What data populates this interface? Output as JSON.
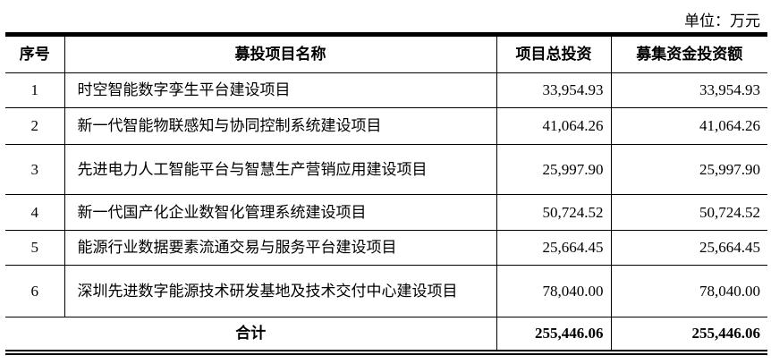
{
  "unit": "单位：万元",
  "headers": [
    "序号",
    "募投项目名称",
    "项目总投资",
    "募集资金投资额"
  ],
  "rows": [
    {
      "no": "1",
      "name": "时空智能数字孪生平台建设项目",
      "total": "33,954.93",
      "raised": "33,954.93"
    },
    {
      "no": "2",
      "name": "新一代智能物联感知与协同控制系统建设项目",
      "total": "41,064.26",
      "raised": "41,064.26"
    },
    {
      "no": "3",
      "name": "先进电力人工智能平台与智慧生产营销应用建设项目",
      "total": "25,997.90",
      "raised": "25,997.90"
    },
    {
      "no": "4",
      "name": "新一代国产化企业数智化管理系统建设项目",
      "total": "50,724.52",
      "raised": "50,724.52"
    },
    {
      "no": "5",
      "name": "能源行业数据要素流通交易与服务平台建设项目",
      "total": "25,664.45",
      "raised": "25,664.45"
    },
    {
      "no": "6",
      "name": "深圳先进数字能源技术研发基地及技术交付中心建设项目",
      "total": "78,040.00",
      "raised": "78,040.00"
    }
  ],
  "total": {
    "label": "合计",
    "total": "255,446.06",
    "raised": "255,446.06"
  }
}
